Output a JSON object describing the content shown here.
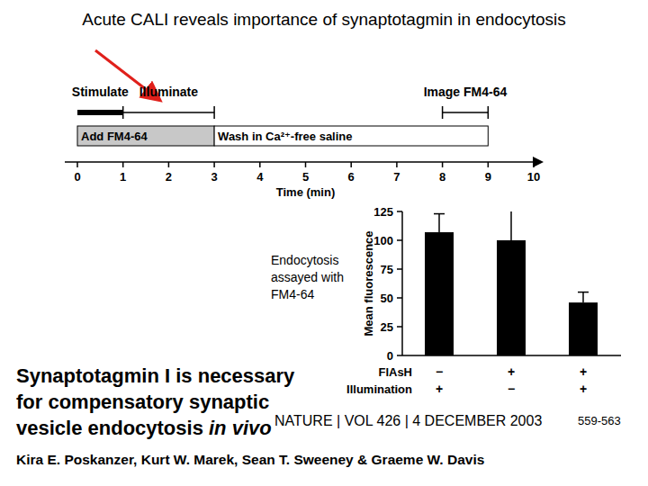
{
  "slide_title": "Acute CALI reveals importance of synaptotagmin in endocytosis",
  "chart_data": [
    {
      "type": "timeline",
      "x_label": "Time (min)",
      "xlim": [
        0,
        10
      ],
      "xticks": [
        0,
        1,
        2,
        3,
        4,
        5,
        6,
        7,
        8,
        9,
        10
      ],
      "events": [
        {
          "label": "Stimulate",
          "start": 0,
          "end": 1,
          "line_style": "thick"
        },
        {
          "label": "Illuminate",
          "start": 1,
          "end": 3,
          "line_style": "bracket"
        },
        {
          "label": "Image FM4-64",
          "start": 8,
          "end": 9,
          "line_style": "bracket"
        }
      ],
      "phases": [
        {
          "label": "Add FM4-64",
          "start": 0,
          "end": 3,
          "color": "#c8c8c8"
        },
        {
          "label": "Wash in Ca²⁺-free saline",
          "start": 3,
          "end": 9,
          "color": "#ffffff"
        }
      ]
    },
    {
      "type": "bar",
      "annotation": [
        "Endocytosis",
        "assayed with",
        "FM4-64"
      ],
      "y_label": "Mean fluorescence",
      "categories": [
        [
          "−",
          "+"
        ],
        [
          "+",
          "−"
        ],
        [
          "+",
          "+"
        ]
      ],
      "category_rows": [
        "FlAsH",
        "Illumination"
      ],
      "values": [
        107,
        100,
        46
      ],
      "errors": [
        16,
        28,
        9
      ],
      "ylim": [
        0,
        125
      ],
      "yticks": [
        0,
        25,
        50,
        75,
        100,
        125
      ],
      "color": "#000000"
    }
  ],
  "paper": {
    "title_lines": [
      [
        "Synaptotagmin I is necessary"
      ],
      [
        "for compensatory synaptic"
      ],
      [
        "vesicle endocytosis ",
        "in vivo"
      ]
    ],
    "journal": "NATURE | VOL 426 | 4 DECEMBER 2003",
    "pages": "559-563",
    "authors": "Kira E. Poskanzer, Kurt W. Marek, Sean T. Sweeney & Graeme W. Davis"
  }
}
